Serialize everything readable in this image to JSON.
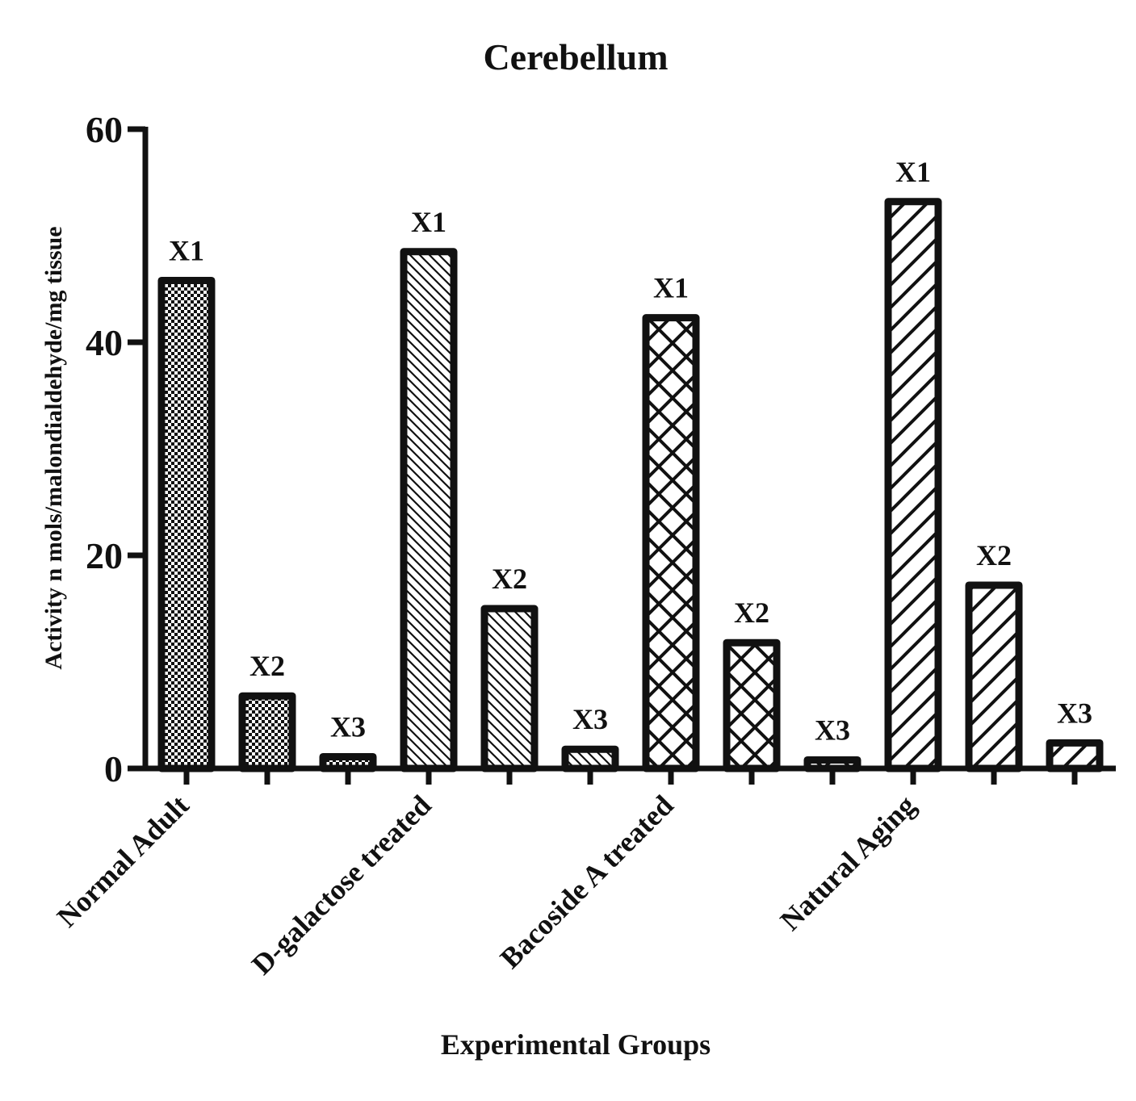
{
  "chart_data": {
    "type": "bar",
    "title": "Cerebellum",
    "xlabel": "Experimental Groups",
    "ylabel": "Activity n mols/malondialdehyde/mg tissue",
    "ylim": [
      0,
      60
    ],
    "yticks": [
      "0",
      "20",
      "40",
      "60"
    ],
    "grid": false,
    "groups": [
      {
        "name": "Normal Adult",
        "pattern": "checker",
        "bars": [
          {
            "label": "X1",
            "value": 45.8
          },
          {
            "label": "X2",
            "value": 6.8
          },
          {
            "label": "X3",
            "value": 1.1
          }
        ]
      },
      {
        "name": "D-galactose treated",
        "pattern": "diag-back",
        "bars": [
          {
            "label": "X1",
            "value": 48.5
          },
          {
            "label": "X2",
            "value": 15.0
          },
          {
            "label": "X3",
            "value": 1.8
          }
        ]
      },
      {
        "name": "Bacoside A treated",
        "pattern": "crosshatch",
        "bars": [
          {
            "label": "X1",
            "value": 42.3
          },
          {
            "label": "X2",
            "value": 11.8
          },
          {
            "label": "X3",
            "value": 0.8
          }
        ]
      },
      {
        "name": "Natural Aging",
        "pattern": "diag-fwd",
        "bars": [
          {
            "label": "X1",
            "value": 53.2
          },
          {
            "label": "X2",
            "value": 17.2
          },
          {
            "label": "X3",
            "value": 2.4
          }
        ]
      }
    ]
  },
  "colors": {
    "ink": "#111111",
    "background": "#ffffff"
  }
}
